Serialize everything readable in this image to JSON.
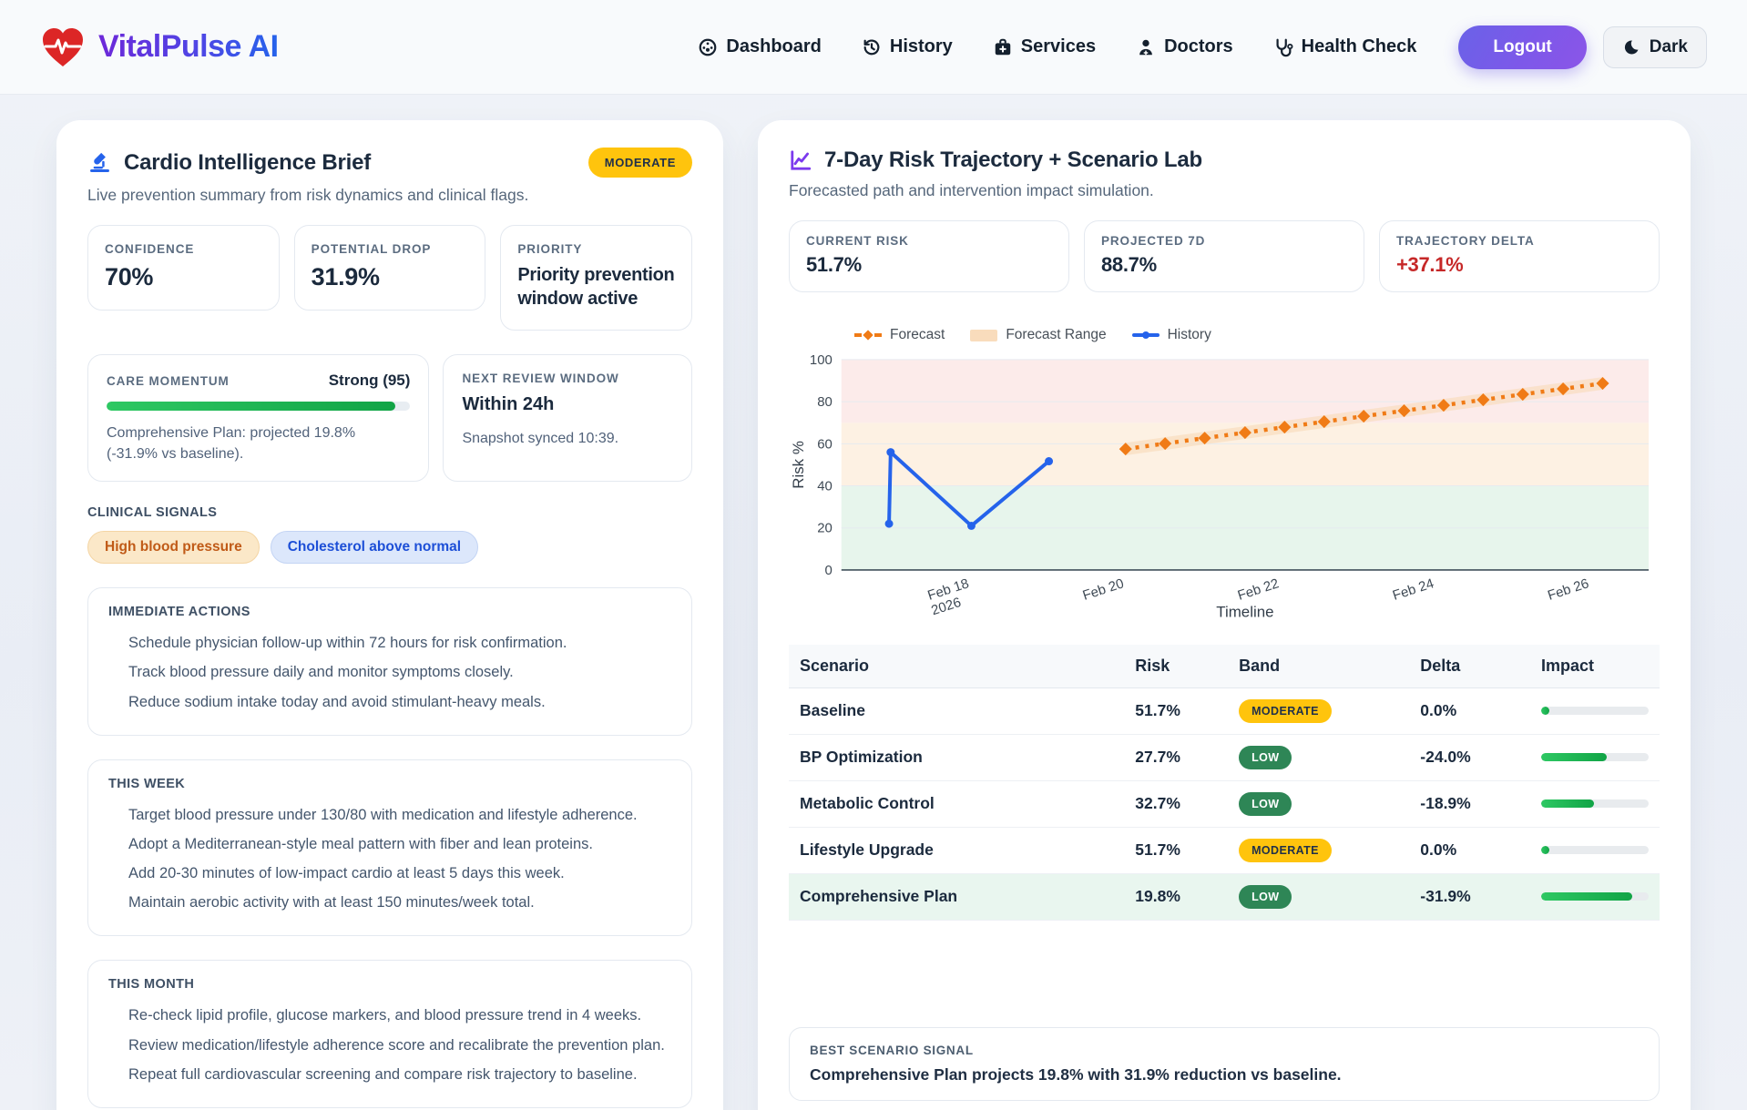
{
  "header": {
    "brand": "VitalPulse AI",
    "nav": [
      {
        "label": "Dashboard"
      },
      {
        "label": "History"
      },
      {
        "label": "Services"
      },
      {
        "label": "Doctors"
      },
      {
        "label": "Health Check"
      }
    ],
    "logout_label": "Logout",
    "theme_label": "Dark"
  },
  "left_panel": {
    "title": "Cardio Intelligence Brief",
    "badge": "MODERATE",
    "subtitle": "Live prevention summary from risk dynamics and clinical flags.",
    "stats": [
      {
        "label": "CONFIDENCE",
        "value": "70%"
      },
      {
        "label": "POTENTIAL DROP",
        "value": "31.9%"
      },
      {
        "label": "PRIORITY",
        "value": "Priority prevention window active"
      }
    ],
    "momentum": {
      "label": "CARE MOMENTUM",
      "score_label": "Strong (95)",
      "percent": 95,
      "caption": "Comprehensive Plan: projected 19.8% (-31.9% vs baseline)."
    },
    "review": {
      "label": "NEXT REVIEW WINDOW",
      "value": "Within 24h",
      "caption": "Snapshot synced 10:39."
    },
    "signals": {
      "label": "CLINICAL SIGNALS",
      "pills": [
        {
          "label": "High blood pressure"
        },
        {
          "label": "Cholesterol above normal"
        }
      ]
    },
    "sections": [
      {
        "heading": "IMMEDIATE ACTIONS",
        "items": [
          "Schedule physician follow-up within 72 hours for risk confirmation.",
          "Track blood pressure daily and monitor symptoms closely.",
          "Reduce sodium intake today and avoid stimulant-heavy meals."
        ]
      },
      {
        "heading": "THIS WEEK",
        "items": [
          "Target blood pressure under 130/80 with medication and lifestyle adherence.",
          "Adopt a Mediterranean-style meal pattern with fiber and lean proteins.",
          "Add 20-30 minutes of low-impact cardio at least 5 days this week.",
          "Maintain aerobic activity with at least 150 minutes/week total."
        ]
      },
      {
        "heading": "THIS MONTH",
        "items": [
          "Re-check lipid profile, glucose markers, and blood pressure trend in 4 weeks.",
          "Review medication/lifestyle adherence score and recalibrate the prevention plan.",
          "Repeat full cardiovascular screening and compare risk trajectory to baseline."
        ]
      }
    ]
  },
  "right_panel": {
    "title": "7-Day Risk Trajectory + Scenario Lab",
    "subtitle": "Forecasted path and intervention impact simulation.",
    "stats": [
      {
        "label": "CURRENT RISK",
        "value": "51.7%"
      },
      {
        "label": "PROJECTED 7D",
        "value": "88.7%"
      },
      {
        "label": "TRAJECTORY DELTA",
        "value": "+37.1%"
      }
    ],
    "table": {
      "headers": [
        "Scenario",
        "Risk",
        "Band",
        "Delta",
        "Impact"
      ],
      "rows": [
        {
          "scenario": "Baseline",
          "risk": "51.7%",
          "band": "MODERATE",
          "band_type": "moderate",
          "delta": "0.0%",
          "impact_pct": 8,
          "highlight": false
        },
        {
          "scenario": "BP Optimization",
          "risk": "27.7%",
          "band": "LOW",
          "band_type": "low",
          "delta": "-24.0%",
          "impact_pct": 61,
          "highlight": false
        },
        {
          "scenario": "Metabolic Control",
          "risk": "32.7%",
          "band": "LOW",
          "band_type": "low",
          "delta": "-18.9%",
          "impact_pct": 49,
          "highlight": false
        },
        {
          "scenario": "Lifestyle Upgrade",
          "risk": "51.7%",
          "band": "MODERATE",
          "band_type": "moderate",
          "delta": "0.0%",
          "impact_pct": 8,
          "highlight": false
        },
        {
          "scenario": "Comprehensive Plan",
          "risk": "19.8%",
          "band": "LOW",
          "band_type": "low",
          "delta": "-31.9%",
          "impact_pct": 85,
          "highlight": true
        }
      ]
    },
    "best": {
      "label": "BEST SCENARIO SIGNAL",
      "text": "Comprehensive Plan projects 19.8% with 31.9% reduction vs baseline."
    }
  },
  "chart_data": {
    "type": "line",
    "xlabel": "Timeline",
    "ylabel": "Risk %",
    "ylim": [
      0,
      100
    ],
    "yticks": [
      0,
      20,
      40,
      60,
      80,
      100
    ],
    "grid": true,
    "legend_position": "top-left",
    "xticks": [
      {
        "label": "Feb 18",
        "sub": "2026",
        "pos": 0.134
      },
      {
        "label": "Feb 20",
        "pos": 0.326
      },
      {
        "label": "Feb 22",
        "pos": 0.518
      },
      {
        "label": "Feb 24",
        "pos": 0.71
      },
      {
        "label": "Feb 26",
        "pos": 0.902
      }
    ],
    "bands": [
      {
        "name": "low-zone",
        "from": 0,
        "to": 40,
        "color": "#e7f5ec"
      },
      {
        "name": "moderate-zone",
        "from": 40,
        "to": 70,
        "color": "#fdf1e3"
      },
      {
        "name": "high-zone",
        "from": 70,
        "to": 100,
        "color": "#fcebea"
      }
    ],
    "range_color": "#f9dcbc",
    "legend": [
      {
        "label": "Forecast"
      },
      {
        "label": "Forecast Range"
      },
      {
        "label": "History"
      }
    ],
    "series": [
      {
        "name": "History",
        "color": "#2563eb",
        "style": "solid",
        "marker": "circle",
        "points": [
          {
            "x": 0.059,
            "y": 22
          },
          {
            "x": 0.061,
            "y": 56
          },
          {
            "x": 0.161,
            "y": 21
          },
          {
            "x": 0.257,
            "y": 51.7
          }
        ]
      },
      {
        "name": "Forecast",
        "color": "#f07b16",
        "style": "dashed",
        "marker": "diamond",
        "range": 3,
        "points": [
          {
            "x": 0.352,
            "y": 57.5
          },
          {
            "x": 0.401,
            "y": 60.1
          },
          {
            "x": 0.45,
            "y": 62.7
          },
          {
            "x": 0.5,
            "y": 65.3
          },
          {
            "x": 0.549,
            "y": 67.9
          },
          {
            "x": 0.598,
            "y": 70.5
          },
          {
            "x": 0.647,
            "y": 73.1
          },
          {
            "x": 0.697,
            "y": 75.7
          },
          {
            "x": 0.746,
            "y": 78.3
          },
          {
            "x": 0.795,
            "y": 80.9
          },
          {
            "x": 0.844,
            "y": 83.5
          },
          {
            "x": 0.894,
            "y": 86.1
          },
          {
            "x": 0.943,
            "y": 88.7
          }
        ]
      }
    ]
  }
}
